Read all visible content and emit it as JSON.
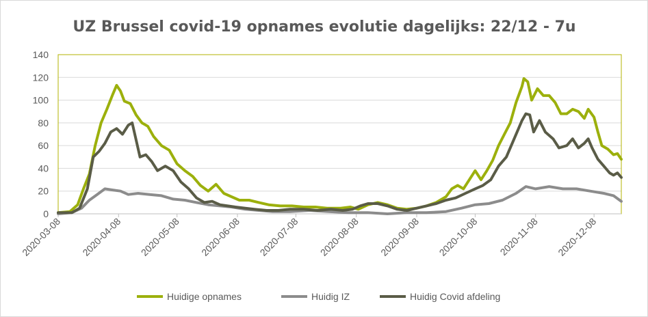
{
  "chart_data": {
    "type": "line",
    "title": "UZ Brussel covid-19 opnames evolutie dagelijks: 22/12 - 7u",
    "xlabel": "",
    "ylabel": "",
    "ylim": [
      0,
      140
    ],
    "yticks": [
      0,
      20,
      40,
      60,
      80,
      100,
      120,
      140
    ],
    "xlim": [
      "2020-03-08",
      "2020-12-22"
    ],
    "x_tick_labels": [
      "2020-03-08",
      "2020-04-08",
      "2020-05-08",
      "2020-06-08",
      "2020-07-08",
      "2020-08-08",
      "2020-09-08",
      "2020-10-08",
      "2020-11-08",
      "2020-12-08"
    ],
    "grid": "horizontal",
    "legend_position": "bottom",
    "series": [
      {
        "name": "Huidige opnames",
        "color": "#9cb00c",
        "points": [
          [
            "2020-03-08",
            1
          ],
          [
            "2020-03-14",
            2
          ],
          [
            "2020-03-18",
            8
          ],
          [
            "2020-03-21",
            22
          ],
          [
            "2020-03-24",
            35
          ],
          [
            "2020-03-27",
            60
          ],
          [
            "2020-03-30",
            80
          ],
          [
            "2020-04-02",
            92
          ],
          [
            "2020-04-05",
            105
          ],
          [
            "2020-04-07",
            113
          ],
          [
            "2020-04-09",
            108
          ],
          [
            "2020-04-11",
            99
          ],
          [
            "2020-04-14",
            97
          ],
          [
            "2020-04-17",
            87
          ],
          [
            "2020-04-20",
            80
          ],
          [
            "2020-04-23",
            77
          ],
          [
            "2020-04-26",
            68
          ],
          [
            "2020-04-30",
            60
          ],
          [
            "2020-05-04",
            56
          ],
          [
            "2020-05-08",
            44
          ],
          [
            "2020-05-12",
            38
          ],
          [
            "2020-05-16",
            33
          ],
          [
            "2020-05-20",
            25
          ],
          [
            "2020-05-24",
            20
          ],
          [
            "2020-05-28",
            26
          ],
          [
            "2020-06-01",
            18
          ],
          [
            "2020-06-05",
            15
          ],
          [
            "2020-06-09",
            12
          ],
          [
            "2020-06-14",
            12
          ],
          [
            "2020-06-19",
            10
          ],
          [
            "2020-06-24",
            8
          ],
          [
            "2020-06-30",
            7
          ],
          [
            "2020-07-06",
            7
          ],
          [
            "2020-07-12",
            6
          ],
          [
            "2020-07-18",
            6
          ],
          [
            "2020-07-24",
            5
          ],
          [
            "2020-07-31",
            5
          ],
          [
            "2020-08-05",
            6
          ],
          [
            "2020-08-09",
            4
          ],
          [
            "2020-08-14",
            8
          ],
          [
            "2020-08-19",
            10
          ],
          [
            "2020-08-24",
            8
          ],
          [
            "2020-08-29",
            5
          ],
          [
            "2020-09-03",
            4
          ],
          [
            "2020-09-08",
            5
          ],
          [
            "2020-09-13",
            7
          ],
          [
            "2020-09-18",
            10
          ],
          [
            "2020-09-23",
            15
          ],
          [
            "2020-09-26",
            22
          ],
          [
            "2020-09-29",
            25
          ],
          [
            "2020-10-02",
            22
          ],
          [
            "2020-10-05",
            30
          ],
          [
            "2020-10-08",
            38
          ],
          [
            "2020-10-11",
            30
          ],
          [
            "2020-10-14",
            38
          ],
          [
            "2020-10-17",
            47
          ],
          [
            "2020-10-20",
            60
          ],
          [
            "2020-10-23",
            70
          ],
          [
            "2020-10-26",
            80
          ],
          [
            "2020-10-29",
            98
          ],
          [
            "2020-11-01",
            112
          ],
          [
            "2020-11-02",
            119
          ],
          [
            "2020-11-04",
            116
          ],
          [
            "2020-11-06",
            100
          ],
          [
            "2020-11-09",
            110
          ],
          [
            "2020-11-12",
            104
          ],
          [
            "2020-11-15",
            104
          ],
          [
            "2020-11-18",
            98
          ],
          [
            "2020-11-21",
            88
          ],
          [
            "2020-11-24",
            88
          ],
          [
            "2020-11-27",
            92
          ],
          [
            "2020-11-30",
            90
          ],
          [
            "2020-12-03",
            84
          ],
          [
            "2020-12-05",
            92
          ],
          [
            "2020-12-08",
            85
          ],
          [
            "2020-12-10",
            72
          ],
          [
            "2020-12-12",
            60
          ],
          [
            "2020-12-15",
            57
          ],
          [
            "2020-12-18",
            52
          ],
          [
            "2020-12-20",
            53
          ],
          [
            "2020-12-22",
            48
          ]
        ]
      },
      {
        "name": "Huidig IZ",
        "color": "#8c8c8c",
        "points": [
          [
            "2020-03-08",
            0
          ],
          [
            "2020-03-15",
            1
          ],
          [
            "2020-03-20",
            5
          ],
          [
            "2020-03-24",
            12
          ],
          [
            "2020-03-28",
            17
          ],
          [
            "2020-04-01",
            22
          ],
          [
            "2020-04-05",
            21
          ],
          [
            "2020-04-09",
            20
          ],
          [
            "2020-04-13",
            17
          ],
          [
            "2020-04-18",
            18
          ],
          [
            "2020-04-24",
            17
          ],
          [
            "2020-04-30",
            16
          ],
          [
            "2020-05-06",
            13
          ],
          [
            "2020-05-12",
            12
          ],
          [
            "2020-05-18",
            10
          ],
          [
            "2020-05-24",
            8
          ],
          [
            "2020-05-30",
            7
          ],
          [
            "2020-06-05",
            6
          ],
          [
            "2020-06-12",
            4
          ],
          [
            "2020-06-19",
            3
          ],
          [
            "2020-06-26",
            2
          ],
          [
            "2020-07-05",
            2
          ],
          [
            "2020-07-15",
            3
          ],
          [
            "2020-07-25",
            2
          ],
          [
            "2020-08-04",
            1
          ],
          [
            "2020-08-14",
            1
          ],
          [
            "2020-08-24",
            0
          ],
          [
            "2020-09-03",
            1
          ],
          [
            "2020-09-13",
            1
          ],
          [
            "2020-09-23",
            2
          ],
          [
            "2020-10-01",
            5
          ],
          [
            "2020-10-08",
            8
          ],
          [
            "2020-10-15",
            9
          ],
          [
            "2020-10-22",
            12
          ],
          [
            "2020-10-29",
            18
          ],
          [
            "2020-11-03",
            24
          ],
          [
            "2020-11-08",
            22
          ],
          [
            "2020-11-15",
            24
          ],
          [
            "2020-11-22",
            22
          ],
          [
            "2020-11-29",
            22
          ],
          [
            "2020-12-06",
            20
          ],
          [
            "2020-12-13",
            18
          ],
          [
            "2020-12-18",
            16
          ],
          [
            "2020-12-22",
            11
          ]
        ]
      },
      {
        "name": "Huidig Covid afdeling",
        "color": "#5a5c47",
        "points": [
          [
            "2020-03-08",
            1
          ],
          [
            "2020-03-15",
            1
          ],
          [
            "2020-03-19",
            5
          ],
          [
            "2020-03-23",
            22
          ],
          [
            "2020-03-26",
            50
          ],
          [
            "2020-03-29",
            55
          ],
          [
            "2020-04-01",
            62
          ],
          [
            "2020-04-04",
            72
          ],
          [
            "2020-04-07",
            75
          ],
          [
            "2020-04-10",
            70
          ],
          [
            "2020-04-13",
            78
          ],
          [
            "2020-04-15",
            80
          ],
          [
            "2020-04-17",
            65
          ],
          [
            "2020-04-19",
            50
          ],
          [
            "2020-04-22",
            52
          ],
          [
            "2020-04-25",
            46
          ],
          [
            "2020-04-28",
            38
          ],
          [
            "2020-05-02",
            42
          ],
          [
            "2020-05-06",
            38
          ],
          [
            "2020-05-10",
            28
          ],
          [
            "2020-05-14",
            22
          ],
          [
            "2020-05-18",
            14
          ],
          [
            "2020-05-22",
            10
          ],
          [
            "2020-05-26",
            11
          ],
          [
            "2020-05-30",
            8
          ],
          [
            "2020-06-03",
            7
          ],
          [
            "2020-06-07",
            6
          ],
          [
            "2020-06-12",
            5
          ],
          [
            "2020-06-17",
            4
          ],
          [
            "2020-06-23",
            3
          ],
          [
            "2020-06-29",
            3
          ],
          [
            "2020-07-05",
            4
          ],
          [
            "2020-07-12",
            4
          ],
          [
            "2020-07-19",
            3
          ],
          [
            "2020-07-26",
            4
          ],
          [
            "2020-08-01",
            3
          ],
          [
            "2020-08-06",
            4
          ],
          [
            "2020-08-10",
            7
          ],
          [
            "2020-08-14",
            9
          ],
          [
            "2020-08-19",
            9
          ],
          [
            "2020-08-24",
            7
          ],
          [
            "2020-08-29",
            4
          ],
          [
            "2020-09-03",
            3
          ],
          [
            "2020-09-08",
            5
          ],
          [
            "2020-09-13",
            7
          ],
          [
            "2020-09-18",
            9
          ],
          [
            "2020-09-23",
            12
          ],
          [
            "2020-09-28",
            14
          ],
          [
            "2020-10-03",
            18
          ],
          [
            "2020-10-08",
            22
          ],
          [
            "2020-10-12",
            25
          ],
          [
            "2020-10-16",
            30
          ],
          [
            "2020-10-20",
            42
          ],
          [
            "2020-10-24",
            50
          ],
          [
            "2020-10-28",
            66
          ],
          [
            "2020-11-01",
            82
          ],
          [
            "2020-11-03",
            88
          ],
          [
            "2020-11-05",
            87
          ],
          [
            "2020-11-07",
            72
          ],
          [
            "2020-11-10",
            82
          ],
          [
            "2020-11-13",
            72
          ],
          [
            "2020-11-17",
            66
          ],
          [
            "2020-11-20",
            58
          ],
          [
            "2020-11-24",
            60
          ],
          [
            "2020-11-27",
            66
          ],
          [
            "2020-11-30",
            58
          ],
          [
            "2020-12-03",
            62
          ],
          [
            "2020-12-05",
            66
          ],
          [
            "2020-12-07",
            58
          ],
          [
            "2020-12-10",
            48
          ],
          [
            "2020-12-13",
            42
          ],
          [
            "2020-12-16",
            36
          ],
          [
            "2020-12-18",
            34
          ],
          [
            "2020-12-20",
            36
          ],
          [
            "2020-12-22",
            32
          ]
        ]
      }
    ]
  }
}
